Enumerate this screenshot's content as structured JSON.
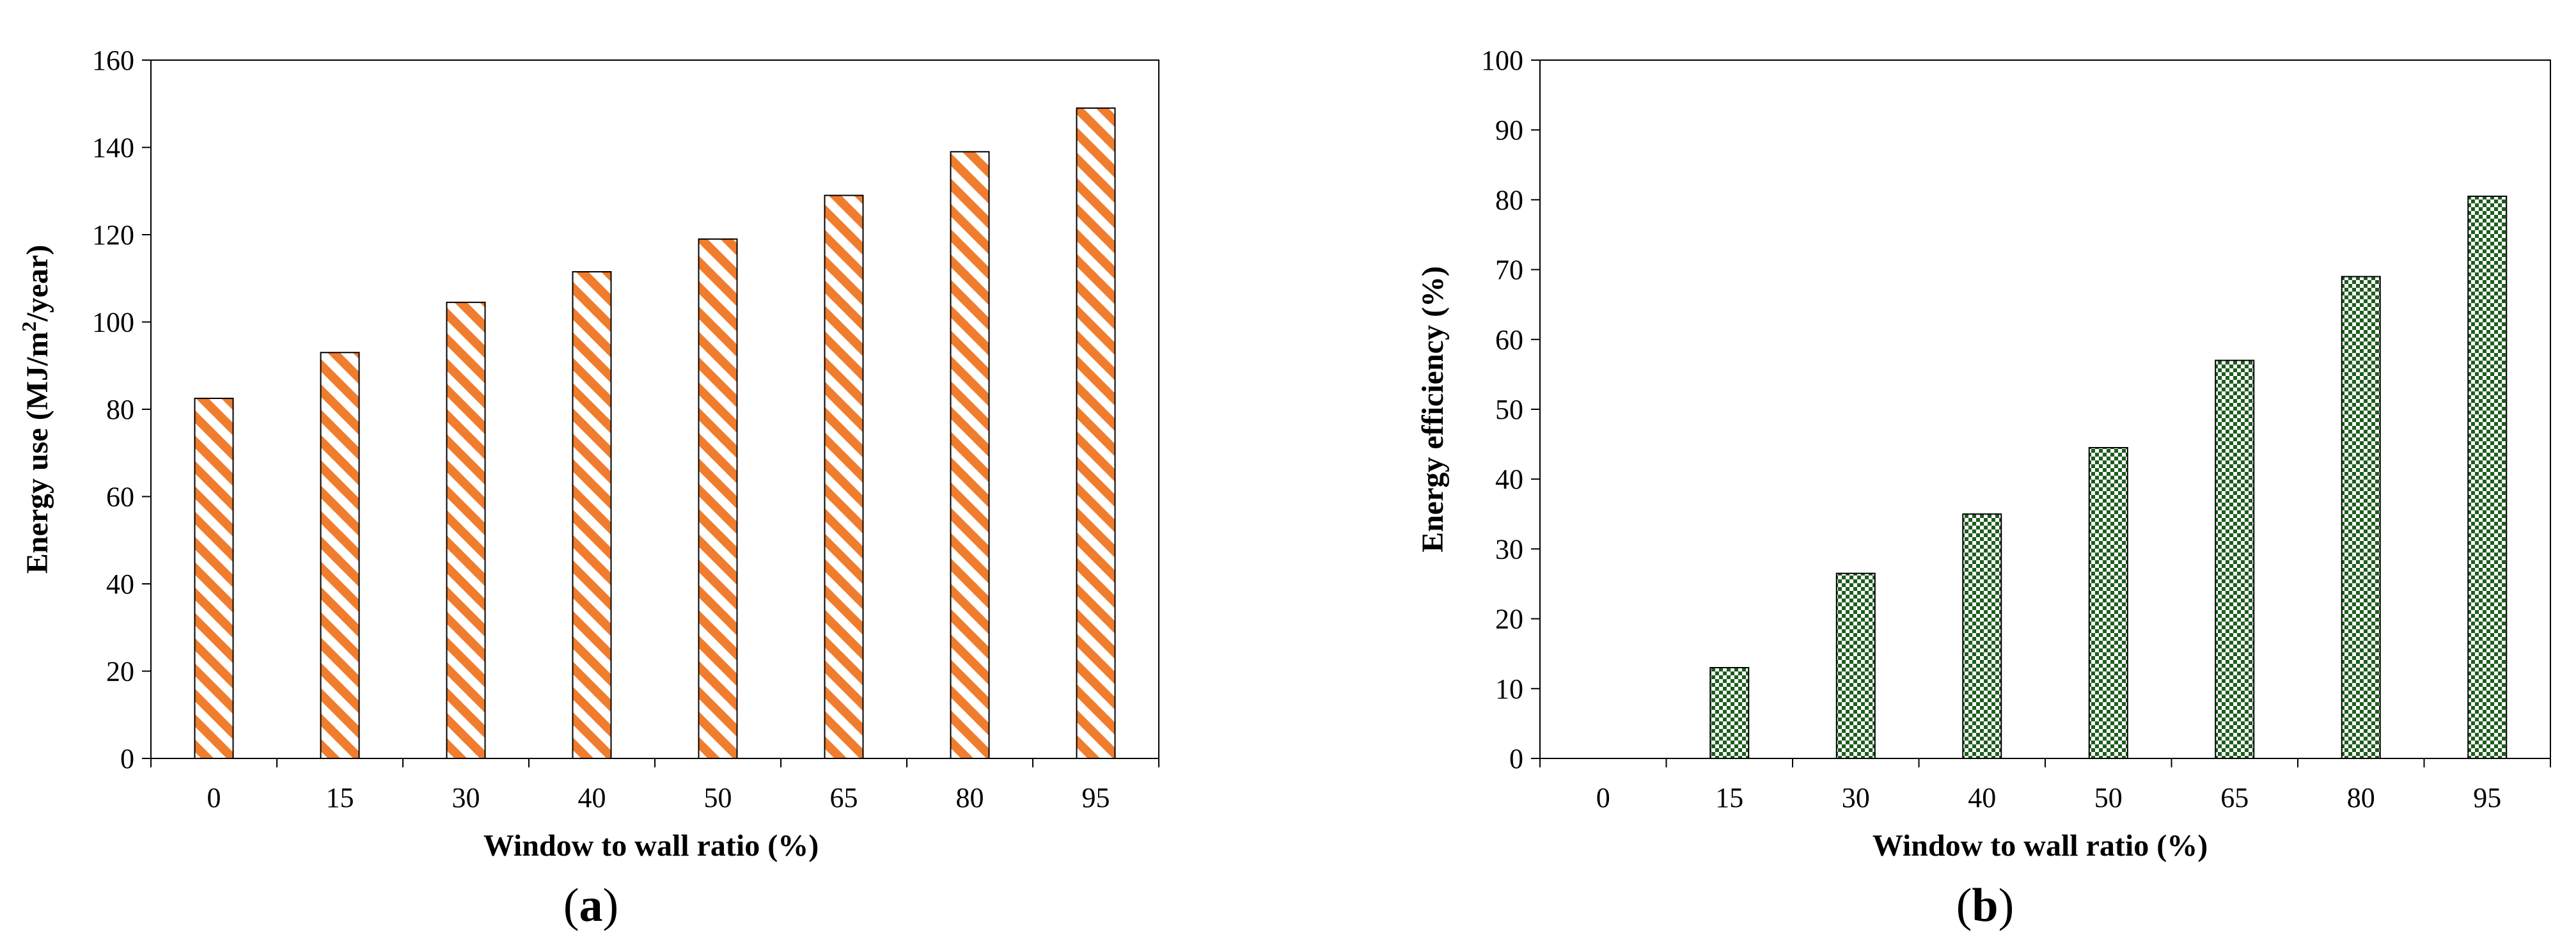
{
  "colors": {
    "orange": "#F07D2E",
    "green": "#1E5C1E",
    "axis": "#000000"
  },
  "chart_data": [
    {
      "panel": "a",
      "type": "bar",
      "pattern": "diagonal-stripes",
      "categories": [
        "0",
        "15",
        "30",
        "40",
        "50",
        "65",
        "80",
        "95"
      ],
      "values": [
        82.5,
        93,
        104.5,
        111.5,
        119,
        129,
        139,
        149
      ],
      "xlabel": "Window to wall ratio (%)",
      "ylabel_main": "Energy use (MJ/m",
      "ylabel_sup": "2",
      "ylabel_end": "/year)",
      "ylim": [
        0,
        160
      ],
      "yticks": [
        "0",
        "20",
        "40",
        "60",
        "80",
        "100",
        "120",
        "140",
        "160"
      ],
      "grid": false,
      "label_open": "(",
      "label_letter": "a",
      "label_close": ")"
    },
    {
      "panel": "b",
      "type": "bar",
      "pattern": "checkerboard",
      "categories": [
        "0",
        "15",
        "30",
        "40",
        "50",
        "65",
        "80",
        "95"
      ],
      "values": [
        0,
        13,
        26.5,
        35,
        44.5,
        57,
        69,
        80.5
      ],
      "xlabel": "Window to wall ratio (%)",
      "ylabel": "Energy efficiency (%)",
      "ylim": [
        0,
        100
      ],
      "yticks": [
        "0",
        "10",
        "20",
        "30",
        "40",
        "50",
        "60",
        "70",
        "80",
        "90",
        "100"
      ],
      "grid": false,
      "label_open": "(",
      "label_letter": "b",
      "label_close": ")"
    }
  ]
}
